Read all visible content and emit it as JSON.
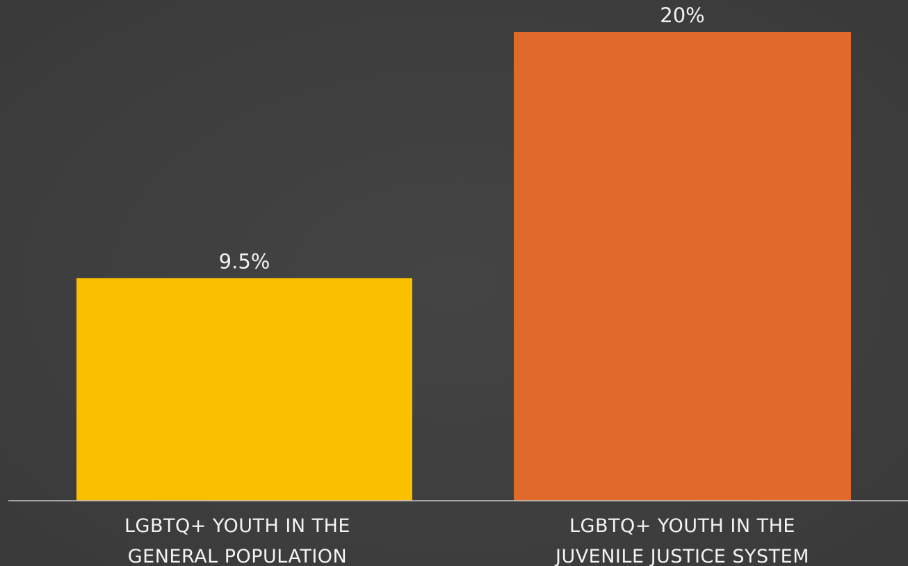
{
  "chart_data": {
    "type": "bar",
    "title": "",
    "xlabel": "",
    "ylabel": "",
    "ylim": [
      0,
      20
    ],
    "grid": false,
    "legend": "none",
    "categories": [
      [
        "LGBTQ+ YOUTH IN THE",
        "GENERAL POPULATION"
      ],
      [
        "LGBTQ+ YOUTH IN THE",
        "JUVENILE JUSTICE SYSTEM"
      ]
    ],
    "values": [
      9.5,
      20
    ],
    "value_labels": [
      "9.5%",
      "20%"
    ],
    "colors": [
      "#fac000",
      "#e06a2c"
    ]
  },
  "colors": {
    "background": "#3f3f3f",
    "baseline": "#c8c8c8",
    "text": "#f2f2f2"
  }
}
